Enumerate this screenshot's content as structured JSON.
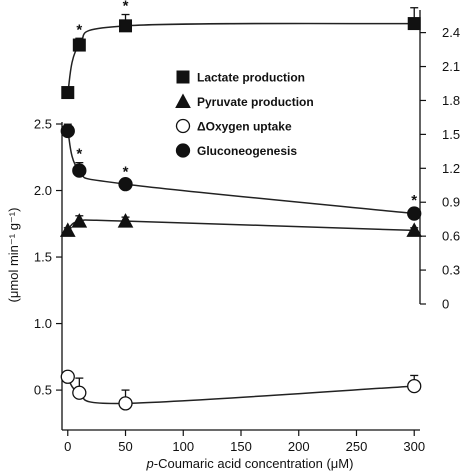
{
  "chart_data": {
    "type": "scatter",
    "title": "",
    "xlabel_italic": "p",
    "xlabel_rest": "-Coumaric acid concentration (μM)",
    "ylabel": "(μmol min⁻¹ g⁻¹)",
    "grid": false,
    "legend_position": "center-right",
    "x_axis": {
      "range": [
        -5,
        305
      ],
      "ticks": [
        0,
        50,
        100,
        150,
        200,
        250,
        300
      ]
    },
    "y_left": {
      "range": [
        0.2,
        2.5
      ],
      "ticks": [
        "0.5",
        "1.0",
        "1.5",
        "2.0",
        "2.5"
      ]
    },
    "y_right": {
      "range": [
        0,
        2.6
      ],
      "ticks": [
        "0",
        "0.3",
        "0.6",
        "0.9",
        "1.2",
        "1.5",
        "1.8",
        "2.1",
        "2.4"
      ]
    },
    "significance_marker": "*",
    "series": [
      {
        "name": "Lactate production",
        "axis": "right",
        "marker": "square",
        "fill": "#111111",
        "x": [
          0,
          10,
          50,
          300
        ],
        "y": [
          1.87,
          2.29,
          2.46,
          2.48
        ],
        "err": [
          0.04,
          0.06,
          0.1,
          0.14
        ],
        "significant": [
          false,
          true,
          true,
          true
        ]
      },
      {
        "name": "Pyruvate production",
        "axis": "left",
        "marker": "triangle",
        "fill": "#111111",
        "x": [
          0,
          10,
          50,
          300
        ],
        "y": [
          1.7,
          1.77,
          1.77,
          1.7
        ],
        "err": [
          0.02,
          0.04,
          0.03,
          0.02
        ],
        "significant": [
          false,
          false,
          false,
          false
        ]
      },
      {
        "name": "ΔOxygen uptake",
        "axis": "left",
        "marker": "circle",
        "fill": "#ffffff",
        "x": [
          0,
          10,
          50,
          300
        ],
        "y": [
          0.6,
          0.48,
          0.4,
          0.53
        ],
        "err": [
          0.03,
          0.11,
          0.1,
          0.08
        ],
        "significant": [
          false,
          false,
          false,
          false
        ]
      },
      {
        "name": "Gluconeogenesis",
        "axis": "right",
        "marker": "circle",
        "fill": "#111111",
        "x": [
          0,
          10,
          50,
          300
        ],
        "y": [
          1.53,
          1.18,
          1.06,
          0.8
        ],
        "err": [
          0.06,
          0.07,
          0.03,
          0.04
        ],
        "significant": [
          false,
          true,
          true,
          true
        ]
      }
    ]
  }
}
